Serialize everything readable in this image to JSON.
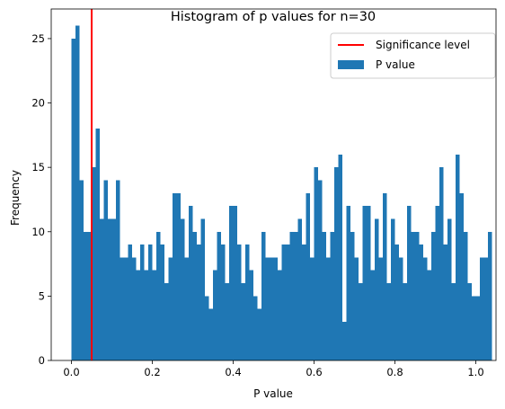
{
  "chart_data": {
    "type": "histogram",
    "title": "Histogram of p values for n=30",
    "xlabel": "P value",
    "ylabel": "Frequency",
    "xlim": [
      -0.05,
      1.05
    ],
    "ylim": [
      0,
      27.3
    ],
    "x_ticks": [
      "0.0",
      "0.2",
      "0.4",
      "0.6",
      "0.8",
      "1.0"
    ],
    "y_ticks": [
      "0",
      "5",
      "10",
      "15",
      "20",
      "25"
    ],
    "bin_start": 0.0,
    "bin_width": 0.01,
    "values": [
      25,
      26,
      14,
      10,
      10,
      15,
      18,
      11,
      14,
      11,
      11,
      14,
      8,
      8,
      9,
      8,
      7,
      9,
      7,
      9,
      7,
      10,
      9,
      6,
      8,
      13,
      13,
      11,
      8,
      12,
      10,
      9,
      11,
      5,
      4,
      7,
      10,
      9,
      6,
      12,
      12,
      9,
      6,
      9,
      7,
      5,
      4,
      10,
      8,
      8,
      8,
      7,
      9,
      9,
      10,
      10,
      11,
      9,
      13,
      8,
      15,
      14,
      10,
      8,
      10,
      15,
      16,
      3,
      12,
      10,
      8,
      6,
      12,
      12,
      7,
      11,
      8,
      13,
      6,
      11,
      9,
      8,
      6,
      12,
      10,
      10,
      9,
      8,
      7,
      10,
      12,
      15,
      9,
      11,
      6,
      16,
      13,
      10,
      6,
      5,
      5,
      8,
      8,
      10
    ],
    "legend": {
      "placement": "top-right",
      "entries": [
        {
          "label": "Significance level",
          "kind": "line",
          "color": "#ff0000"
        },
        {
          "label": "P value",
          "kind": "patch",
          "color": "#1f77b4"
        }
      ]
    },
    "significance_level": 0.05,
    "bar_color": "#1f77b4",
    "line_color": "#ff0000",
    "grid": false
  }
}
